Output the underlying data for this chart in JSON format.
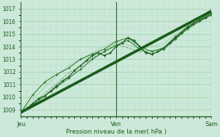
{
  "xlabel": "Pression niveau de la mer( hPa )",
  "background_color": "#cce8d8",
  "grid_color_major": "#99ccaa",
  "grid_color_minor": "#b8ddc8",
  "text_color": "#1a5c1a",
  "line_dark": "#1a5c1a",
  "line_mid": "#2a7a2a",
  "line_light": "#6aaa7a",
  "ylim": [
    1008.5,
    1017.5
  ],
  "yticks": [
    1009,
    1010,
    1011,
    1012,
    1013,
    1014,
    1015,
    1016,
    1017
  ],
  "day_labels": [
    "Jeu",
    "Ven",
    "Sam"
  ],
  "day_positions": [
    0,
    48,
    96
  ],
  "xlim": [
    0,
    96
  ],
  "thick_line": [
    0,
    1008.8,
    96,
    1016.8
  ],
  "series_A": [
    0,
    1008.8,
    3,
    1009.1,
    6,
    1009.5,
    9,
    1009.9,
    12,
    1010.1,
    15,
    1010.5,
    18,
    1010.9,
    21,
    1011.3,
    24,
    1011.6,
    27,
    1012.1,
    30,
    1012.5,
    33,
    1012.9,
    36,
    1013.3,
    39,
    1013.5,
    42,
    1013.3,
    45,
    1013.5,
    48,
    1014.0,
    51,
    1014.3,
    54,
    1014.7,
    57,
    1014.5,
    60,
    1014.0,
    63,
    1013.5,
    66,
    1013.4,
    69,
    1013.6,
    72,
    1013.9,
    75,
    1014.3,
    78,
    1014.7,
    81,
    1015.1,
    84,
    1015.5,
    87,
    1015.8,
    90,
    1016.1,
    93,
    1016.3,
    96,
    1016.6
  ],
  "series_B": [
    0,
    1008.8,
    6,
    1009.4,
    12,
    1010.1,
    18,
    1010.8,
    24,
    1011.5,
    30,
    1012.2,
    36,
    1013.0,
    42,
    1013.6,
    48,
    1014.1,
    54,
    1014.5,
    60,
    1013.8,
    66,
    1013.4,
    72,
    1013.8,
    78,
    1014.6,
    84,
    1015.4,
    90,
    1016.0,
    96,
    1016.5
  ],
  "series_C": [
    0,
    1008.8,
    6,
    1010.2,
    12,
    1011.2,
    18,
    1011.8,
    24,
    1012.3,
    30,
    1013.0,
    36,
    1013.4,
    42,
    1013.8,
    48,
    1014.4,
    54,
    1014.7,
    60,
    1014.0,
    66,
    1013.6,
    72,
    1013.9,
    78,
    1014.8,
    84,
    1015.6,
    90,
    1016.1,
    96,
    1016.7
  ],
  "series_D": [
    0,
    1008.8,
    12,
    1010.3,
    24,
    1011.9,
    36,
    1013.1,
    48,
    1014.2,
    60,
    1013.6,
    72,
    1013.8,
    84,
    1015.5,
    96,
    1017.0
  ],
  "series_E": [
    0,
    1008.8,
    12,
    1010.8,
    24,
    1012.5,
    36,
    1013.5,
    48,
    1014.5,
    60,
    1013.8,
    72,
    1014.2,
    84,
    1015.8,
    96,
    1016.9
  ]
}
